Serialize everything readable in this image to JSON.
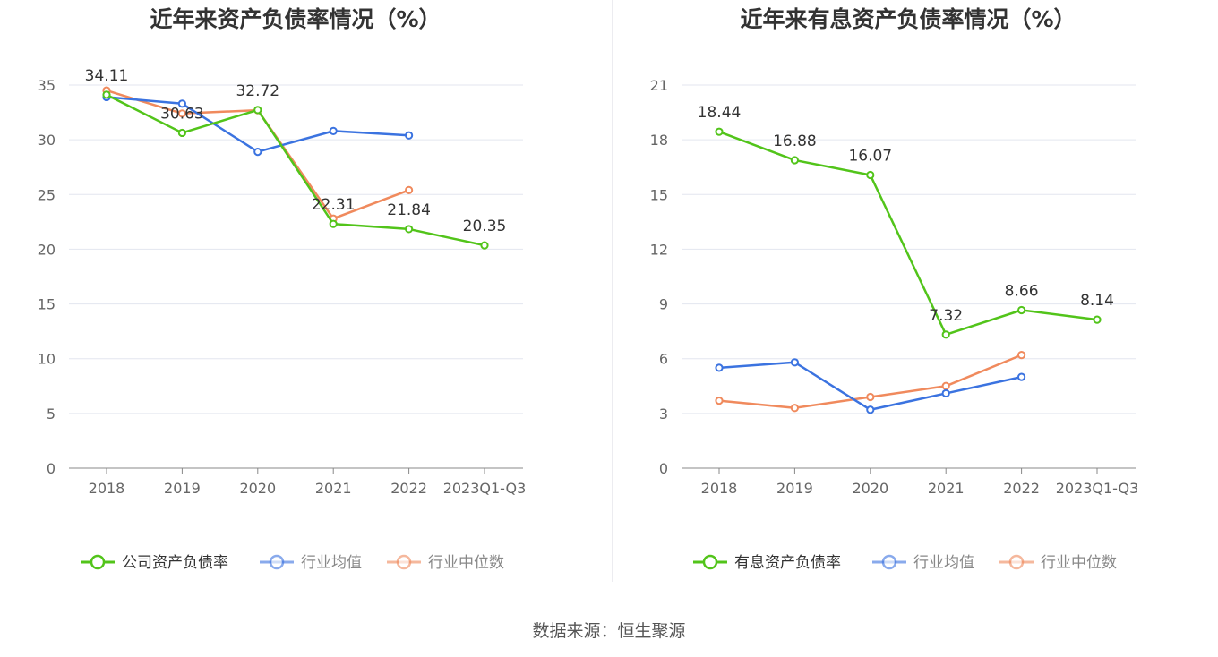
{
  "colors": {
    "company": "#52c41a",
    "industry_avg": "#3b73e0",
    "industry_median": "#f08a5d",
    "grid": "#e3e6ef",
    "axis": "#888888",
    "tick_text": "#666666",
    "title": "#333333",
    "label": "#333333"
  },
  "chart_data": [
    {
      "type": "line",
      "title": "近年来资产负债率情况（%）",
      "categories": [
        "2018",
        "2019",
        "2020",
        "2021",
        "2022",
        "2023Q1-Q3"
      ],
      "ylim": [
        0,
        35
      ],
      "yticks": [
        0,
        5,
        10,
        15,
        20,
        25,
        30,
        35
      ],
      "series": [
        {
          "name": "公司资产负债率",
          "values": [
            34.11,
            30.63,
            32.72,
            22.31,
            21.84,
            20.35
          ],
          "labels": true
        },
        {
          "name": "行业均值",
          "values": [
            33.9,
            33.3,
            28.9,
            30.8,
            30.4,
            null
          ],
          "labels": false
        },
        {
          "name": "行业中位数",
          "values": [
            34.5,
            32.4,
            32.7,
            22.8,
            25.4,
            null
          ],
          "labels": false
        }
      ]
    },
    {
      "type": "line",
      "title": "近年来有息资产负债率情况（%）",
      "categories": [
        "2018",
        "2019",
        "2020",
        "2021",
        "2022",
        "2023Q1-Q3"
      ],
      "ylim": [
        0,
        21
      ],
      "yticks": [
        0,
        3,
        6,
        9,
        12,
        15,
        18,
        21
      ],
      "series": [
        {
          "name": "有息资产负债率",
          "values": [
            18.44,
            16.88,
            16.07,
            7.32,
            8.66,
            8.14
          ],
          "labels": true
        },
        {
          "name": "行业均值",
          "values": [
            5.5,
            5.8,
            3.2,
            4.1,
            5.0,
            null
          ],
          "labels": false
        },
        {
          "name": "行业中位数",
          "values": [
            3.7,
            3.3,
            3.9,
            4.5,
            6.2,
            null
          ],
          "labels": false
        }
      ]
    }
  ],
  "footer": {
    "source": "数据来源：恒生聚源"
  }
}
